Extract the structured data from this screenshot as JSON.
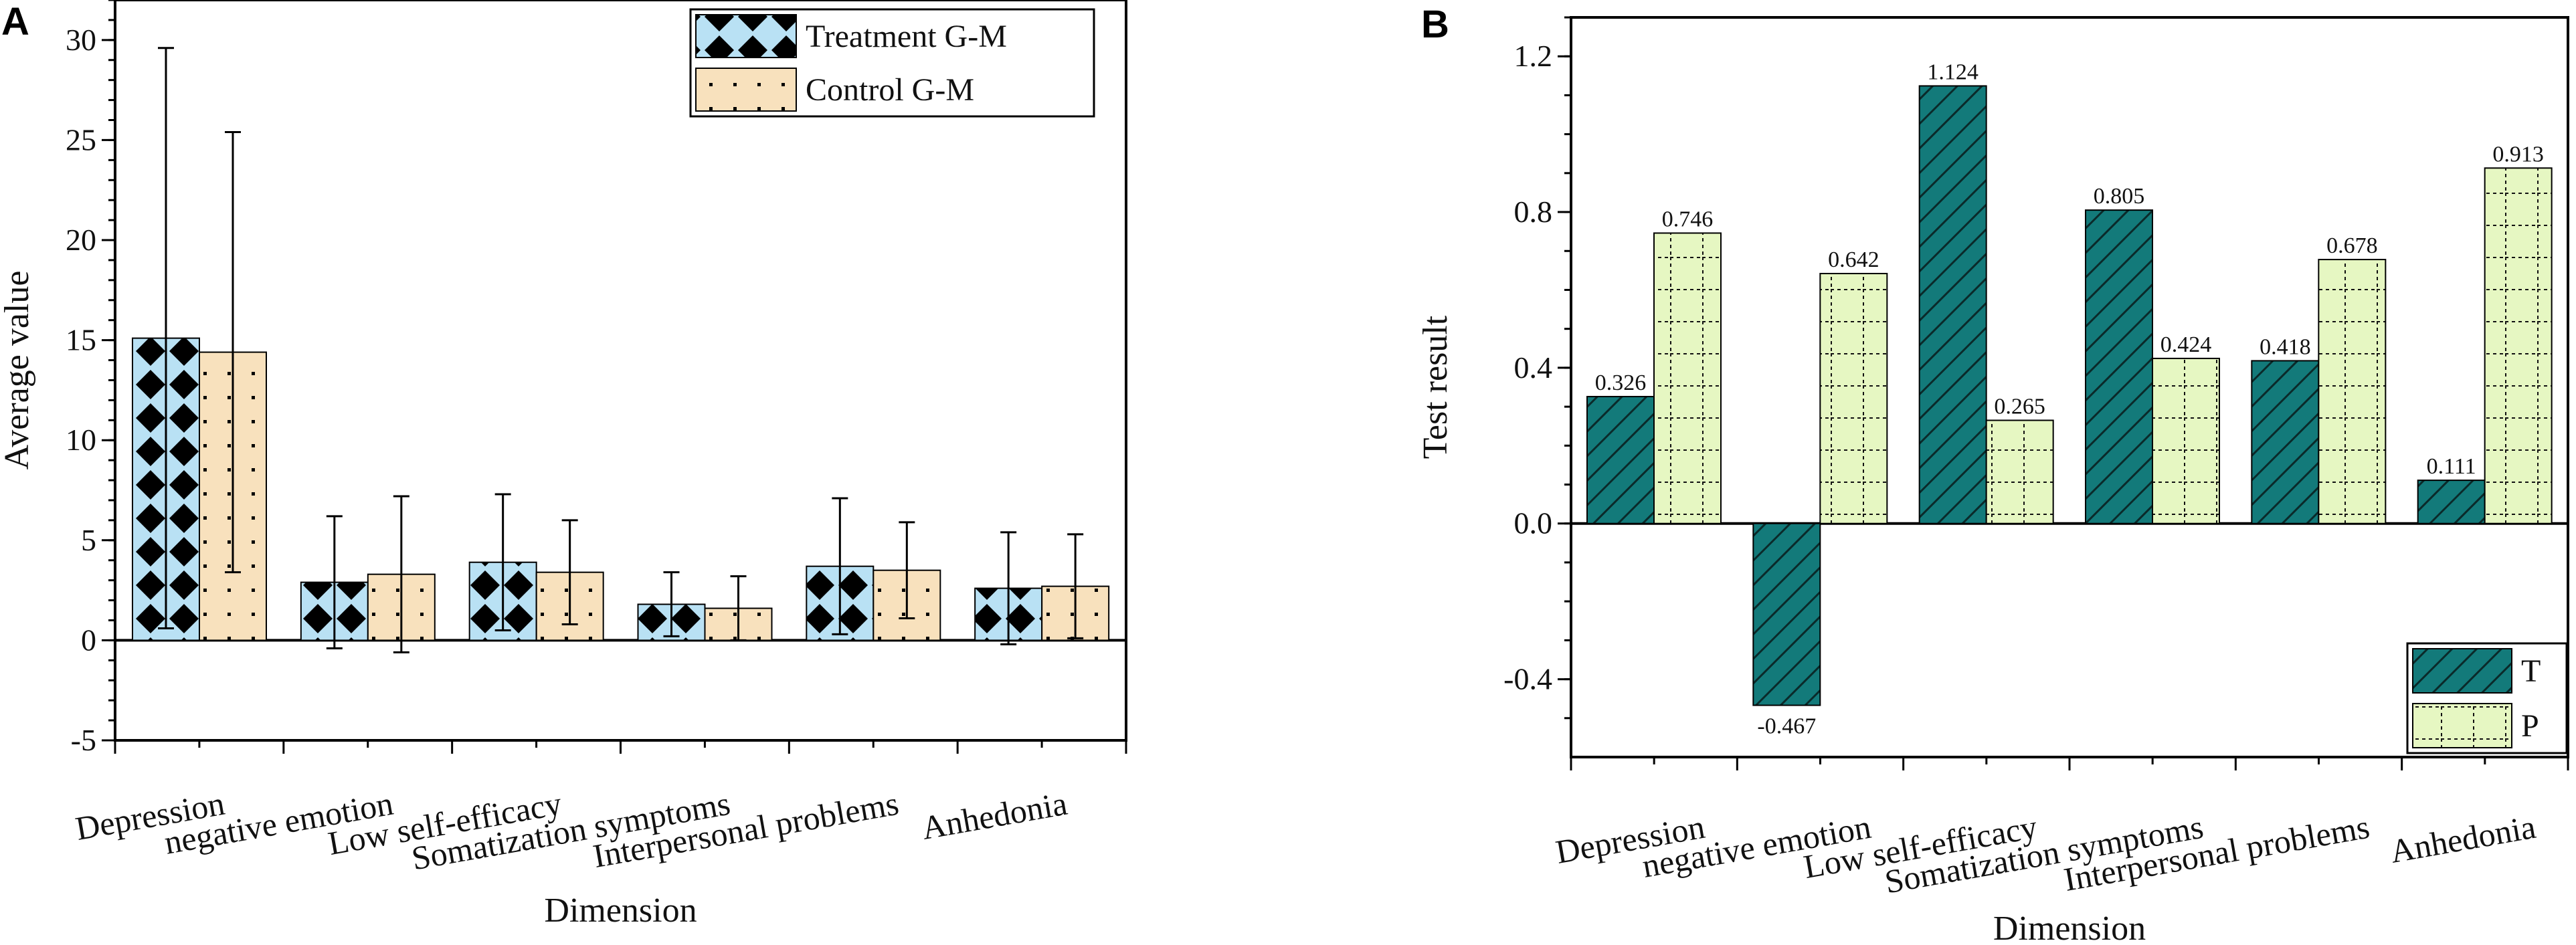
{
  "chart_data": [
    {
      "panel": "A",
      "type": "bar",
      "xlabel": "Dimension",
      "ylabel": "Average value",
      "ylim": [
        -5,
        32
      ],
      "yticks": [
        -5,
        0,
        5,
        10,
        15,
        20,
        25,
        30
      ],
      "yticklabels": [
        "-5",
        "0",
        "5",
        "10",
        "15",
        "20",
        "25",
        "30"
      ],
      "categories": [
        "Depression",
        "negative emotion",
        "Low self-efficacy",
        "Somatization symptoms",
        "Interpersonal problems",
        "Anhedonia"
      ],
      "series": [
        {
          "name": "Treatment G-M",
          "values": [
            15.1,
            2.9,
            3.9,
            1.8,
            3.7,
            2.6
          ],
          "errors": [
            14.5,
            3.3,
            3.4,
            1.6,
            3.4,
            2.8
          ],
          "color": "#b9e1f4",
          "pattern": "dark-diamonds"
        },
        {
          "name": "Control G-M",
          "values": [
            14.4,
            3.3,
            3.4,
            1.6,
            3.5,
            2.7
          ],
          "errors": [
            11.0,
            3.9,
            2.6,
            1.6,
            2.4,
            2.6
          ],
          "color": "#f8e1bd",
          "pattern": "dots"
        }
      ],
      "legend_position": "top-right",
      "grid": false
    },
    {
      "panel": "B",
      "type": "bar",
      "xlabel": "Dimension",
      "ylabel": "Test result",
      "ylim": [
        -0.6,
        1.3
      ],
      "yticks": [
        -0.4,
        0.0,
        0.4,
        0.8,
        1.2
      ],
      "yticklabels": [
        "-0.4",
        "0.0",
        "0.4",
        "0.8",
        "1.2"
      ],
      "categories": [
        "Depression",
        "negative emotion",
        "Low self-efficacy",
        "Somatization symptoms",
        "Interpersonal problems",
        "Anhedonia"
      ],
      "series": [
        {
          "name": "T",
          "values": [
            0.326,
            -0.467,
            1.124,
            0.805,
            0.418,
            0.111
          ],
          "labels": [
            "0.326",
            "-0.467",
            "1.124",
            "0.805",
            "0.418",
            "0.111"
          ],
          "color": "#137a7a",
          "pattern": "hatch"
        },
        {
          "name": "P",
          "values": [
            0.746,
            0.642,
            0.265,
            0.424,
            0.678,
            0.913
          ],
          "labels": [
            "0.746",
            "0.642",
            "0.265",
            "0.424",
            "0.678",
            "0.913"
          ],
          "color": "#e6f7c2",
          "pattern": "dotted-grid"
        }
      ],
      "legend_position": "bottom-right",
      "grid": false
    }
  ]
}
